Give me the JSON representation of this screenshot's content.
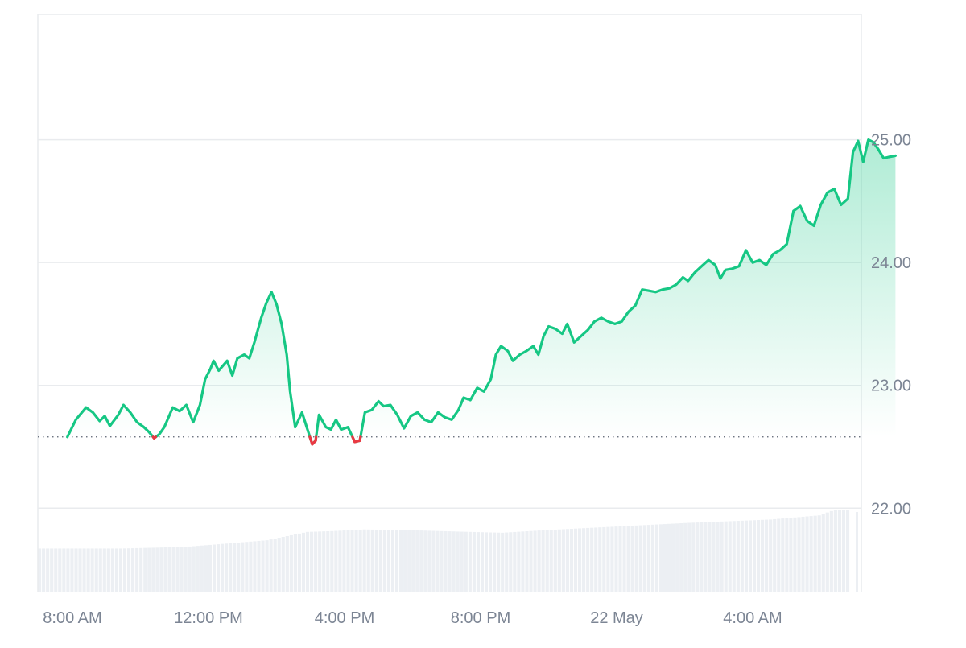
{
  "chart_data": {
    "type": "area",
    "title": "",
    "xlabel": "",
    "ylabel": "",
    "x_ticks": [
      "8:00 AM",
      "12:00 PM",
      "4:00 PM",
      "8:00 PM",
      "22 May",
      "4:00 AM"
    ],
    "x_tick_hours": [
      0,
      4,
      8,
      12,
      16,
      20
    ],
    "y_ticks": [
      "22.00",
      "23.00",
      "24.00",
      "25.00"
    ],
    "y_tick_values": [
      22,
      23,
      24,
      25
    ],
    "ylim": [
      21.32,
      26.02
    ],
    "baseline": 22.58,
    "colors": {
      "up": "#16c784",
      "down": "#ea3943",
      "grid": "#e9ebee",
      "volume": "#eceff3",
      "axis_text": "#7c8594"
    },
    "series": [
      {
        "points": [
          [
            -0.15,
            22.58
          ],
          [
            0.1,
            22.72
          ],
          [
            0.4,
            22.82
          ],
          [
            0.6,
            22.78
          ],
          [
            0.8,
            22.71
          ],
          [
            0.95,
            22.75
          ],
          [
            1.1,
            22.67
          ],
          [
            1.35,
            22.76
          ],
          [
            1.5,
            22.84
          ],
          [
            1.7,
            22.78
          ],
          [
            1.9,
            22.7
          ],
          [
            2.1,
            22.66
          ],
          [
            2.25,
            22.62
          ],
          [
            2.4,
            22.57
          ],
          [
            2.55,
            22.6
          ],
          [
            2.7,
            22.66
          ],
          [
            2.95,
            22.82
          ],
          [
            3.15,
            22.79
          ],
          [
            3.35,
            22.84
          ],
          [
            3.55,
            22.7
          ],
          [
            3.75,
            22.84
          ],
          [
            3.9,
            23.05
          ],
          [
            4.05,
            23.13
          ],
          [
            4.15,
            23.2
          ],
          [
            4.3,
            23.12
          ],
          [
            4.55,
            23.2
          ],
          [
            4.7,
            23.08
          ],
          [
            4.85,
            23.22
          ],
          [
            5.05,
            23.25
          ],
          [
            5.2,
            23.22
          ],
          [
            5.35,
            23.35
          ],
          [
            5.55,
            23.55
          ],
          [
            5.7,
            23.67
          ],
          [
            5.85,
            23.76
          ],
          [
            6.0,
            23.66
          ],
          [
            6.15,
            23.5
          ],
          [
            6.3,
            23.25
          ],
          [
            6.4,
            22.95
          ],
          [
            6.55,
            22.66
          ],
          [
            6.75,
            22.78
          ],
          [
            6.9,
            22.65
          ],
          [
            7.05,
            22.52
          ],
          [
            7.15,
            22.55
          ],
          [
            7.25,
            22.76
          ],
          [
            7.45,
            22.66
          ],
          [
            7.6,
            22.64
          ],
          [
            7.75,
            22.72
          ],
          [
            7.9,
            22.64
          ],
          [
            8.1,
            22.66
          ],
          [
            8.3,
            22.54
          ],
          [
            8.45,
            22.55
          ],
          [
            8.6,
            22.78
          ],
          [
            8.8,
            22.8
          ],
          [
            9.0,
            22.87
          ],
          [
            9.15,
            22.83
          ],
          [
            9.35,
            22.84
          ],
          [
            9.55,
            22.76
          ],
          [
            9.75,
            22.65
          ],
          [
            9.95,
            22.75
          ],
          [
            10.15,
            22.78
          ],
          [
            10.35,
            22.72
          ],
          [
            10.55,
            22.7
          ],
          [
            10.75,
            22.78
          ],
          [
            10.95,
            22.74
          ],
          [
            11.15,
            22.72
          ],
          [
            11.35,
            22.8
          ],
          [
            11.5,
            22.9
          ],
          [
            11.7,
            22.88
          ],
          [
            11.9,
            22.98
          ],
          [
            12.1,
            22.95
          ],
          [
            12.3,
            23.05
          ],
          [
            12.45,
            23.25
          ],
          [
            12.6,
            23.32
          ],
          [
            12.8,
            23.28
          ],
          [
            12.95,
            23.2
          ],
          [
            13.15,
            23.25
          ],
          [
            13.35,
            23.28
          ],
          [
            13.55,
            23.32
          ],
          [
            13.7,
            23.25
          ],
          [
            13.85,
            23.4
          ],
          [
            14.0,
            23.48
          ],
          [
            14.2,
            23.46
          ],
          [
            14.4,
            23.42
          ],
          [
            14.55,
            23.5
          ],
          [
            14.75,
            23.35
          ],
          [
            14.95,
            23.4
          ],
          [
            15.15,
            23.45
          ],
          [
            15.35,
            23.52
          ],
          [
            15.55,
            23.55
          ],
          [
            15.75,
            23.52
          ],
          [
            15.95,
            23.5
          ],
          [
            16.15,
            23.52
          ],
          [
            16.35,
            23.6
          ],
          [
            16.55,
            23.65
          ],
          [
            16.75,
            23.78
          ],
          [
            16.95,
            23.77
          ],
          [
            17.15,
            23.76
          ],
          [
            17.35,
            23.78
          ],
          [
            17.55,
            23.79
          ],
          [
            17.75,
            23.82
          ],
          [
            17.95,
            23.88
          ],
          [
            18.1,
            23.85
          ],
          [
            18.3,
            23.92
          ],
          [
            18.5,
            23.97
          ],
          [
            18.7,
            24.02
          ],
          [
            18.9,
            23.98
          ],
          [
            19.05,
            23.87
          ],
          [
            19.2,
            23.94
          ],
          [
            19.4,
            23.95
          ],
          [
            19.6,
            23.97
          ],
          [
            19.8,
            24.1
          ],
          [
            20.0,
            24.0
          ],
          [
            20.2,
            24.02
          ],
          [
            20.4,
            23.98
          ],
          [
            20.6,
            24.07
          ],
          [
            20.8,
            24.1
          ],
          [
            21.0,
            24.15
          ],
          [
            21.2,
            24.42
          ],
          [
            21.4,
            24.46
          ],
          [
            21.6,
            24.34
          ],
          [
            21.8,
            24.3
          ],
          [
            22.0,
            24.47
          ],
          [
            22.2,
            24.57
          ],
          [
            22.4,
            24.6
          ],
          [
            22.6,
            24.47
          ],
          [
            22.8,
            24.52
          ],
          [
            22.95,
            24.9
          ],
          [
            23.1,
            24.99
          ],
          [
            23.25,
            24.82
          ],
          [
            23.4,
            25.0
          ],
          [
            23.55,
            24.98
          ],
          [
            23.7,
            24.92
          ],
          [
            23.85,
            24.85
          ],
          [
            24.0,
            24.86
          ],
          [
            24.2,
            24.87
          ]
        ]
      }
    ],
    "volume": {
      "bars": 200,
      "levels": [
        [
          0,
          0.52
        ],
        [
          20,
          0.52
        ],
        [
          36,
          0.54
        ],
        [
          46,
          0.58
        ],
        [
          56,
          0.62
        ],
        [
          62,
          0.68
        ],
        [
          66,
          0.72
        ],
        [
          72,
          0.73
        ],
        [
          80,
          0.75
        ],
        [
          92,
          0.74
        ],
        [
          106,
          0.72
        ],
        [
          114,
          0.71
        ],
        [
          124,
          0.74
        ],
        [
          140,
          0.78
        ],
        [
          160,
          0.83
        ],
        [
          180,
          0.87
        ],
        [
          192,
          0.92
        ],
        [
          196,
          0.99
        ]
      ],
      "max": 1.0
    },
    "grid": true,
    "legend": "none"
  }
}
